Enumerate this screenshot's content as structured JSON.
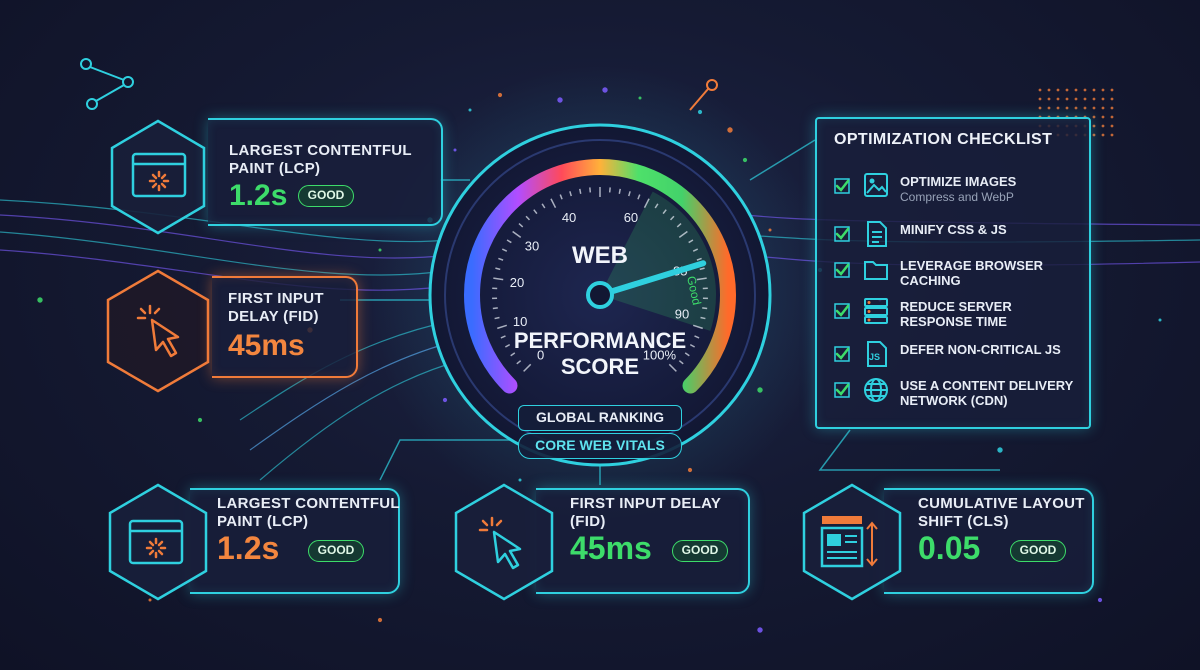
{
  "gauge": {
    "title_top": "WEB",
    "title_bottom_1": "PERFORMANCE",
    "title_bottom_2": "SCORE",
    "good_label": "Good",
    "value": 85,
    "ticks": [
      "0",
      "10",
      "20",
      "30",
      "40",
      "60",
      "85",
      "90",
      "100%"
    ],
    "ranking": "GLOBAL RANKING",
    "vitals": "CORE WEB VITALS"
  },
  "top_cards": [
    {
      "label_1": "LARGEST CONTENTFUL",
      "label_2": "PAINT (LCP)",
      "value": "1.2s",
      "badge": "GOOD"
    },
    {
      "label_1": "FIRST INPUT",
      "label_2": "DELAY (FID)",
      "value": "45ms"
    }
  ],
  "bottom_cards": [
    {
      "label_1": "LARGEST CONTENTFUL",
      "label_2": "PAINT (LCP)",
      "value": "1.2s",
      "badge": "GOOD"
    },
    {
      "label_1": "FIRST INPUT DELAY",
      "label_2": "(FID)",
      "value": "45ms",
      "badge": "GOOD"
    },
    {
      "label_1": "CUMULATIVE LAYOUT",
      "label_2": "SHIFT (CLS)",
      "value": "0.05",
      "badge": "GOOD"
    }
  ],
  "checklist": {
    "title": "OPTIMIZATION CHECKLIST",
    "items": [
      {
        "label_1": "OPTIMIZE IMAGES",
        "sub": "Compress and WebP",
        "icon": "image-icon"
      },
      {
        "label_1": "MINIFY CSS & JS",
        "icon": "file-icon"
      },
      {
        "label_1": "LEVERAGE BROWSER",
        "label_2": "CACHING",
        "icon": "folder-icon"
      },
      {
        "label_1": "REDUCE SERVER",
        "label_2": "RESPONSE TIME",
        "icon": "server-icon"
      },
      {
        "label_1": "DEFER NON-CRITICAL JS",
        "icon": "js-file-icon",
        "icon_text": "JS"
      },
      {
        "label_1": "USE A CONTENT DELIVERY",
        "label_2": "NETWORK (CDN)",
        "icon": "globe-icon"
      }
    ]
  },
  "colors": {
    "accent": "#2fd0df",
    "good": "#3ddc6a",
    "warn": "#f07b3a",
    "bg": "#151a33"
  }
}
